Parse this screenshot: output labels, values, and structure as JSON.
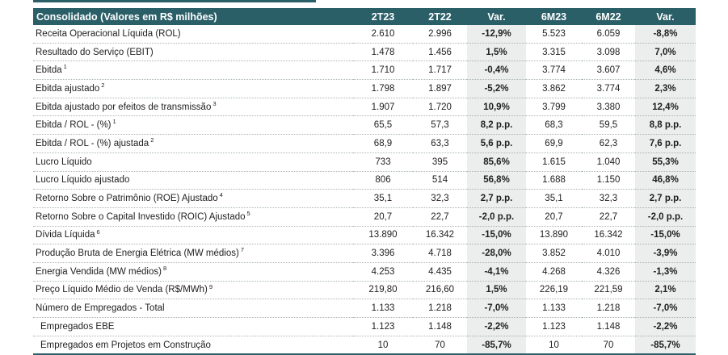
{
  "header": {
    "title": "Consolidado (Valores em R$ milhões)",
    "c1": "2T23",
    "c2": "2T22",
    "c3": "Var.",
    "c4": "6M23",
    "c5": "6M22",
    "c6": "Var."
  },
  "rows": [
    {
      "label": "Receita Operacional Líquida (ROL)",
      "sup": "",
      "c1": "2.610",
      "c2": "2.996",
      "c3": "-12,9%",
      "c4": "5.523",
      "c5": "6.059",
      "c6": "-8,8%"
    },
    {
      "label": "Resultado do Serviço (EBIT)",
      "sup": "",
      "c1": "1.478",
      "c2": "1.456",
      "c3": "1,5%",
      "c4": "3.315",
      "c5": "3.098",
      "c6": "7,0%"
    },
    {
      "label": "Ebitda",
      "sup": "1",
      "c1": "1.710",
      "c2": "1.717",
      "c3": "-0,4%",
      "c4": "3.774",
      "c5": "3.607",
      "c6": "4,6%"
    },
    {
      "label": "Ebitda ajustado",
      "sup": "2",
      "c1": "1.798",
      "c2": "1.897",
      "c3": "-5,2%",
      "c4": "3.862",
      "c5": "3.774",
      "c6": "2,3%"
    },
    {
      "label": "Ebitda ajustado por efeitos de transmissão",
      "sup": "3",
      "c1": "1.907",
      "c2": "1.720",
      "c3": "10,9%",
      "c4": "3.799",
      "c5": "3.380",
      "c6": "12,4%"
    },
    {
      "label": "Ebitda / ROL - (%)",
      "sup": "1",
      "c1": "65,5",
      "c2": "57,3",
      "c3": "8,2 p.p.",
      "c4": "68,3",
      "c5": "59,5",
      "c6": "8,8 p.p."
    },
    {
      "label": "Ebitda / ROL - (%) ajustada",
      "sup": "2",
      "c1": "68,9",
      "c2": "63,3",
      "c3": "5,6 p.p.",
      "c4": "69,9",
      "c5": "62,3",
      "c6": "7,6 p.p."
    },
    {
      "label": "Lucro Líquido",
      "sup": "",
      "c1": "733",
      "c2": "395",
      "c3": "85,6%",
      "c4": "1.615",
      "c5": "1.040",
      "c6": "55,3%"
    },
    {
      "label": "Lucro Líquido ajustado",
      "sup": "",
      "c1": "806",
      "c2": "514",
      "c3": "56,8%",
      "c4": "1.688",
      "c5": "1.150",
      "c6": "46,8%"
    },
    {
      "label": "Retorno Sobre o Patrimônio (ROE) Ajustado",
      "sup": "4",
      "c1": "35,1",
      "c2": "32,3",
      "c3": "2,7 p.p.",
      "c4": "35,1",
      "c5": "32,3",
      "c6": "2,7 p.p."
    },
    {
      "label": "Retorno Sobre o Capital Investido (ROIC) Ajustado",
      "sup": "5",
      "c1": "20,7",
      "c2": "22,7",
      "c3": "-2,0 p.p.",
      "c4": "20,7",
      "c5": "22,7",
      "c6": "-2,0 p.p."
    },
    {
      "label": "Dívida Líquida",
      "sup": "6",
      "c1": "13.890",
      "c2": "16.342",
      "c3": "-15,0%",
      "c4": "13.890",
      "c5": "16.342",
      "c6": "-15,0%"
    },
    {
      "label": "Produção Bruta de Energia Elétrica (MW médios)",
      "sup": "7",
      "c1": "3.396",
      "c2": "4.718",
      "c3": "-28,0%",
      "c4": "3.852",
      "c5": "4.010",
      "c6": "-3,9%"
    },
    {
      "label": "Energia Vendida (MW médios)",
      "sup": "8",
      "c1": "4.253",
      "c2": "4.435",
      "c3": "-4,1%",
      "c4": "4.268",
      "c5": "4.326",
      "c6": "-1,3%"
    },
    {
      "label": "Preço Líquido Médio de Venda (R$/MWh)",
      "sup": "9",
      "c1": "219,80",
      "c2": "216,60",
      "c3": "1,5%",
      "c4": "226,19",
      "c5": "221,59",
      "c6": "2,1%"
    },
    {
      "label": "Número de Empregados - Total",
      "sup": "",
      "c1": "1.133",
      "c2": "1.218",
      "c3": "-7,0%",
      "c4": "1.133",
      "c5": "1.218",
      "c6": "-7,0%"
    },
    {
      "label": "Empregados EBE",
      "sup": "",
      "c1": "1.123",
      "c2": "1.148",
      "c3": "-2,2%",
      "c4": "1.123",
      "c5": "1.148",
      "c6": "-2,2%"
    },
    {
      "label": "Empregados em Projetos em Construção",
      "sup": "",
      "c1": "10",
      "c2": "70",
      "c3": "-85,7%",
      "c4": "10",
      "c5": "70",
      "c6": "-85,7%"
    }
  ]
}
